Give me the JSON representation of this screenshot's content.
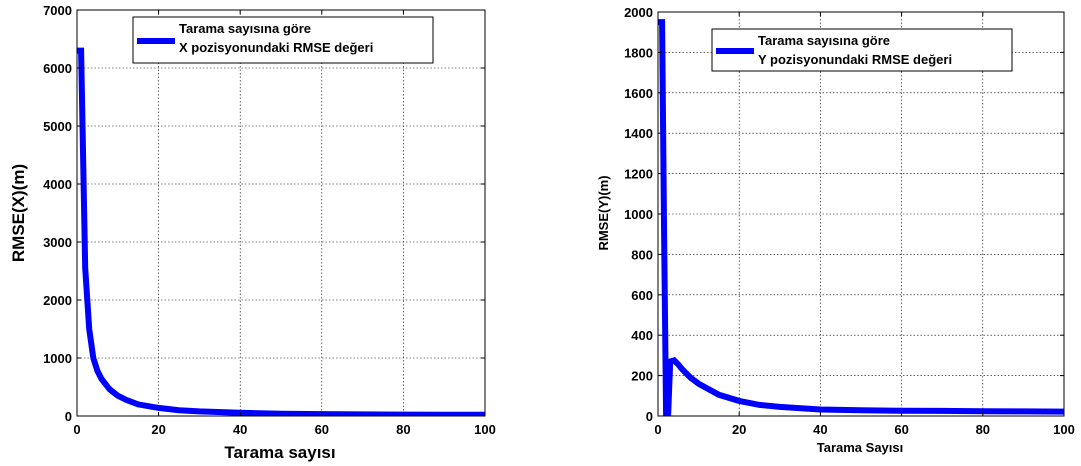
{
  "chart_data": [
    {
      "type": "line",
      "xlabel": "Tarama sayısı",
      "ylabel": "RMSE(X)(m)",
      "xlim": [
        0,
        100
      ],
      "ylim": [
        0,
        7000
      ],
      "xticks": [
        "0",
        "20",
        "40",
        "60",
        "80",
        "100"
      ],
      "yticks": [
        "0",
        "1000",
        "2000",
        "3000",
        "4000",
        "5000",
        "6000",
        "7000"
      ],
      "grid": true,
      "legend_position": "top-right",
      "legend": [
        "Tarama sayısına göre",
        "X pozisyonundaki RMSE değeri"
      ],
      "series": [
        {
          "color": "#0000ff",
          "x": [
            0,
            1,
            2,
            3,
            4,
            5,
            6,
            8,
            10,
            12,
            15,
            20,
            25,
            30,
            40,
            50,
            60,
            70,
            80,
            90,
            100
          ],
          "y": [
            6300,
            6300,
            2550,
            1500,
            1000,
            780,
            640,
            460,
            350,
            280,
            200,
            140,
            100,
            80,
            55,
            40,
            32,
            28,
            25,
            22,
            20
          ]
        }
      ]
    },
    {
      "type": "line",
      "xlabel": "Tarama Sayısı",
      "ylabel": "RMSE(Y)(m)",
      "xlim": [
        0,
        100
      ],
      "ylim": [
        0,
        2000
      ],
      "xticks": [
        "0",
        "20",
        "40",
        "60",
        "80",
        "100"
      ],
      "yticks": [
        "0",
        "200",
        "400",
        "600",
        "800",
        "1000",
        "1200",
        "1400",
        "1600",
        "1800",
        "2000"
      ],
      "grid": true,
      "legend_position": "top-right",
      "legend": [
        "Tarama sayısına göre",
        "Y pozisyonundaki RMSE değeri"
      ],
      "series": [
        {
          "color": "#0000ff",
          "x": [
            0,
            1,
            1.5,
            2,
            2.5,
            3,
            4,
            5,
            6,
            8,
            10,
            15,
            20,
            25,
            30,
            40,
            50,
            60,
            70,
            80,
            90,
            100
          ],
          "y": [
            1950,
            1950,
            900,
            0,
            0,
            270,
            275,
            255,
            230,
            190,
            160,
            105,
            75,
            55,
            45,
            32,
            28,
            26,
            25,
            24,
            23,
            22
          ]
        }
      ]
    }
  ]
}
